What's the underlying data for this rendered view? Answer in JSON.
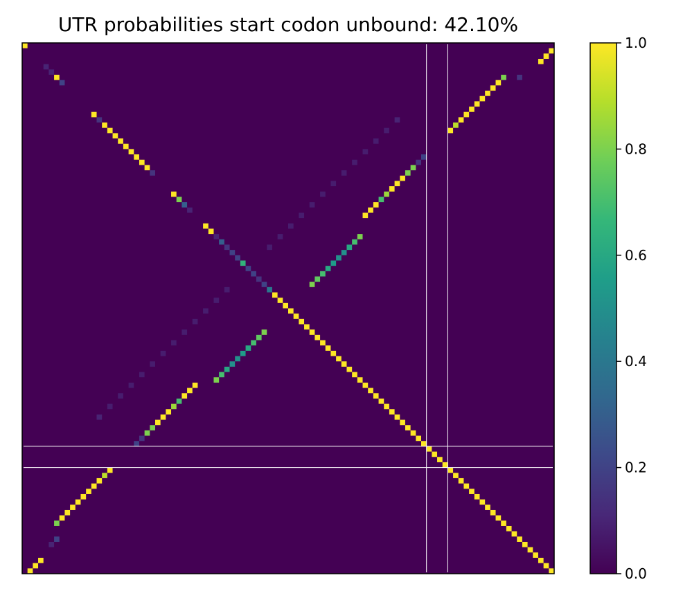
{
  "chart_data": {
    "type": "heatmap",
    "title": "UTR probabilities start codon unbound: 42.10%",
    "matrix_size": 100,
    "x_ticks_shown": false,
    "y_ticks_shown": false,
    "colormap": "viridis",
    "colors": {
      "background": "#440154",
      "guide_lines": "#ffffff",
      "colorbar_stops": [
        "#440154",
        "#482878",
        "#3e4989",
        "#31688e",
        "#26828e",
        "#1f9e89",
        "#35b779",
        "#6ece58",
        "#b5de2b",
        "#fde725"
      ]
    },
    "colorbar": {
      "range": [
        0.0,
        1.0
      ],
      "ticks": [
        {
          "value": 0.0,
          "label": "0.0"
        },
        {
          "value": 0.2,
          "label": "0.2"
        },
        {
          "value": 0.4,
          "label": "0.4"
        },
        {
          "value": 0.6,
          "label": "0.6"
        },
        {
          "value": 0.8,
          "label": "0.8"
        },
        {
          "value": 1.0,
          "label": "1.0"
        }
      ]
    },
    "guide_lines": {
      "vertical_at": [
        76,
        80
      ],
      "horizontal_at": [
        76,
        80
      ]
    },
    "series": [
      {
        "name": "",
        "type": "main_diagonal",
        "cells": [
          [
            0,
            0
          ],
          [
            50,
            50
          ],
          [
            51,
            51
          ],
          [
            52,
            52
          ],
          [
            53,
            53
          ],
          [
            54,
            54
          ],
          [
            55,
            55
          ],
          [
            56,
            56
          ],
          [
            57,
            57
          ],
          [
            58,
            58
          ],
          [
            59,
            59
          ],
          [
            60,
            60
          ],
          [
            61,
            61
          ],
          [
            62,
            62
          ],
          [
            63,
            63
          ],
          [
            64,
            64
          ],
          [
            65,
            65
          ],
          [
            66,
            66
          ],
          [
            67,
            67
          ],
          [
            68,
            68
          ],
          [
            69,
            69
          ],
          [
            70,
            70
          ],
          [
            71,
            71
          ],
          [
            72,
            72
          ],
          [
            73,
            73
          ],
          [
            74,
            74
          ],
          [
            75,
            75
          ],
          [
            76,
            76
          ],
          [
            77,
            77
          ],
          [
            78,
            78
          ],
          [
            79,
            79
          ],
          [
            80,
            80
          ],
          [
            81,
            81
          ],
          [
            82,
            82
          ],
          [
            83,
            83
          ],
          [
            84,
            84
          ],
          [
            85,
            85
          ],
          [
            86,
            86
          ],
          [
            87,
            87
          ],
          [
            88,
            88
          ],
          [
            89,
            89
          ],
          [
            90,
            90
          ],
          [
            91,
            91
          ],
          [
            92,
            92
          ],
          [
            93,
            93
          ],
          [
            94,
            94
          ],
          [
            95,
            95
          ],
          [
            96,
            96
          ],
          [
            97,
            97
          ],
          [
            98,
            98
          ],
          [
            99,
            99
          ]
        ],
        "value": 1.0
      },
      {
        "name": "",
        "type": "cells",
        "cells": [
          [
            5,
            5,
            0.1
          ],
          [
            4,
            4,
            0.1
          ],
          [
            6,
            6,
            1.0
          ],
          [
            7,
            7,
            0.2
          ],
          [
            13,
            13,
            1.0
          ],
          [
            14,
            14,
            0.15
          ],
          [
            15,
            15,
            1.0
          ],
          [
            16,
            16,
            1.0
          ],
          [
            17,
            17,
            1.0
          ],
          [
            18,
            18,
            1.0
          ],
          [
            19,
            19,
            1.0
          ],
          [
            20,
            20,
            1.0
          ],
          [
            21,
            21,
            1.0
          ],
          [
            22,
            22,
            1.0
          ],
          [
            23,
            23,
            1.0
          ],
          [
            24,
            24,
            0.15
          ],
          [
            28,
            28,
            1.0
          ],
          [
            29,
            29,
            0.8
          ],
          [
            30,
            30,
            0.3
          ],
          [
            31,
            31,
            0.1
          ],
          [
            34,
            34,
            1.0
          ],
          [
            35,
            35,
            1.0
          ],
          [
            36,
            36,
            0.1
          ],
          [
            37,
            37,
            0.3
          ],
          [
            38,
            38,
            0.15
          ],
          [
            39,
            39,
            0.2
          ],
          [
            40,
            40,
            0.2
          ],
          [
            41,
            41,
            0.65
          ],
          [
            42,
            42,
            0.2
          ],
          [
            43,
            43,
            0.2
          ],
          [
            44,
            44,
            0.15
          ],
          [
            45,
            45,
            0.2
          ],
          [
            46,
            46,
            0.4
          ],
          [
            47,
            47,
            1.0
          ],
          [
            48,
            48,
            1.0
          ],
          [
            49,
            49,
            1.0
          ]
        ]
      },
      {
        "name": "",
        "type": "anti_diagonal_upper",
        "cells": [
          [
            99,
            1,
            1.0
          ],
          [
            98,
            2,
            1.0
          ],
          [
            97,
            3,
            1.0
          ],
          [
            93,
            6,
            0.15
          ],
          [
            90,
            6,
            0.8
          ],
          [
            89,
            7,
            1.0
          ],
          [
            88,
            8,
            1.0
          ],
          [
            87,
            9,
            1.0
          ],
          [
            86,
            10,
            1.0
          ],
          [
            85,
            11,
            1.0
          ],
          [
            84,
            12,
            1.0
          ],
          [
            83,
            13,
            1.0
          ],
          [
            82,
            14,
            1.0
          ],
          [
            81,
            15,
            0.9
          ],
          [
            80,
            16,
            1.0
          ],
          [
            75,
            21,
            0.2
          ],
          [
            74,
            22,
            0.15
          ],
          [
            73,
            23,
            0.8
          ],
          [
            72,
            24,
            0.8
          ],
          [
            71,
            25,
            1.0
          ],
          [
            70,
            26,
            1.0
          ],
          [
            69,
            27,
            1.0
          ],
          [
            68,
            28,
            0.85
          ],
          [
            67,
            29,
            0.7
          ],
          [
            66,
            30,
            1.0
          ],
          [
            65,
            31,
            1.0
          ],
          [
            64,
            32,
            1.0
          ],
          [
            63,
            36,
            0.8
          ],
          [
            62,
            37,
            0.7
          ],
          [
            61,
            38,
            0.6
          ],
          [
            60,
            39,
            0.5
          ],
          [
            59,
            40,
            0.5
          ],
          [
            58,
            41,
            0.55
          ],
          [
            57,
            42,
            0.6
          ],
          [
            56,
            43,
            0.7
          ],
          [
            55,
            44,
            0.75
          ],
          [
            54,
            45,
            0.8
          ],
          [
            70,
            14,
            0.1
          ],
          [
            68,
            16,
            0.08
          ],
          [
            66,
            18,
            0.08
          ],
          [
            64,
            20,
            0.08
          ],
          [
            62,
            22,
            0.08
          ],
          [
            60,
            24,
            0.08
          ],
          [
            58,
            26,
            0.08
          ],
          [
            56,
            28,
            0.08
          ],
          [
            54,
            30,
            0.08
          ],
          [
            52,
            32,
            0.08
          ],
          [
            50,
            34,
            0.08
          ],
          [
            48,
            36,
            0.08
          ],
          [
            46,
            38,
            0.08
          ]
        ]
      },
      {
        "name": "",
        "type": "anti_diagonal_lower",
        "cells": [
          [
            1,
            99,
            1.0
          ],
          [
            2,
            98,
            1.0
          ],
          [
            3,
            97,
            1.0
          ],
          [
            5,
            94,
            0.1
          ],
          [
            6,
            93,
            0.2
          ],
          [
            6,
            90,
            0.8
          ],
          [
            7,
            89,
            1.0
          ],
          [
            8,
            88,
            1.0
          ],
          [
            9,
            87,
            1.0
          ],
          [
            10,
            86,
            1.0
          ],
          [
            11,
            85,
            1.0
          ],
          [
            12,
            84,
            1.0
          ],
          [
            13,
            83,
            1.0
          ],
          [
            14,
            82,
            1.0
          ],
          [
            15,
            81,
            0.9
          ],
          [
            16,
            80,
            1.0
          ],
          [
            21,
            75,
            0.2
          ],
          [
            22,
            74,
            0.15
          ],
          [
            23,
            73,
            0.8
          ],
          [
            24,
            72,
            0.8
          ],
          [
            25,
            71,
            1.0
          ],
          [
            26,
            70,
            1.0
          ],
          [
            27,
            69,
            1.0
          ],
          [
            28,
            68,
            0.85
          ],
          [
            29,
            67,
            0.7
          ],
          [
            30,
            66,
            1.0
          ],
          [
            31,
            65,
            1.0
          ],
          [
            32,
            64,
            1.0
          ],
          [
            36,
            63,
            0.8
          ],
          [
            37,
            62,
            0.7
          ],
          [
            38,
            61,
            0.6
          ],
          [
            39,
            60,
            0.5
          ],
          [
            40,
            59,
            0.5
          ],
          [
            41,
            58,
            0.55
          ],
          [
            42,
            57,
            0.6
          ],
          [
            43,
            56,
            0.7
          ],
          [
            44,
            55,
            0.75
          ],
          [
            45,
            54,
            0.8
          ],
          [
            14,
            70,
            0.1
          ],
          [
            16,
            68,
            0.08
          ],
          [
            18,
            66,
            0.08
          ],
          [
            20,
            64,
            0.08
          ],
          [
            22,
            62,
            0.08
          ],
          [
            24,
            60,
            0.08
          ],
          [
            26,
            58,
            0.08
          ],
          [
            28,
            56,
            0.08
          ],
          [
            30,
            54,
            0.08
          ],
          [
            32,
            52,
            0.08
          ],
          [
            34,
            50,
            0.08
          ],
          [
            36,
            48,
            0.08
          ],
          [
            38,
            46,
            0.08
          ]
        ]
      }
    ]
  }
}
